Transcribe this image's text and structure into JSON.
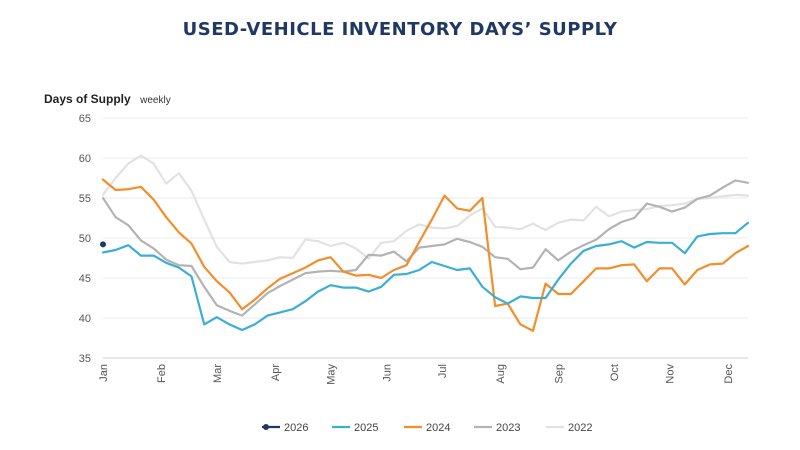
{
  "chart_data": {
    "type": "line",
    "title": "USED-VEHICLE INVENTORY DAYS’ SUPPLY",
    "ylabel": "Days of Supply",
    "ylabel_note": "weekly",
    "xlabel": "",
    "ylim": [
      35,
      65
    ],
    "yticks": [
      35,
      40,
      45,
      50,
      55,
      60,
      65
    ],
    "xlim": [
      1,
      52
    ],
    "months": [
      {
        "label": "Jan",
        "week": 1
      },
      {
        "label": "Feb",
        "week": 5.6
      },
      {
        "label": "Mar",
        "week": 10
      },
      {
        "label": "Apr",
        "week": 14.6
      },
      {
        "label": "May",
        "week": 19
      },
      {
        "label": "Jun",
        "week": 23.4
      },
      {
        "label": "Jul",
        "week": 27.8
      },
      {
        "label": "Aug",
        "week": 32.4
      },
      {
        "label": "Sep",
        "week": 37
      },
      {
        "label": "Oct",
        "week": 41.4
      },
      {
        "label": "Nov",
        "week": 45.8
      },
      {
        "label": "Dec",
        "week": 50.4
      }
    ],
    "grid": "horizontal",
    "legend": "bottom",
    "series": [
      {
        "name": "2026",
        "color": "#1f3864",
        "style": "marker",
        "x": [
          1
        ],
        "values": [
          49.2
        ]
      },
      {
        "name": "2025",
        "color": "#3aaed3",
        "x": [
          1,
          2,
          3,
          4,
          5,
          6,
          7,
          8,
          9,
          10,
          11,
          12,
          13,
          14,
          15,
          16,
          17,
          18,
          19,
          20,
          21,
          22,
          23,
          24,
          25,
          26,
          27,
          28,
          29,
          30,
          31,
          32,
          33,
          34,
          35,
          36,
          37,
          38,
          39,
          40,
          41,
          42,
          43,
          44,
          45,
          46,
          47,
          48,
          49,
          50,
          51,
          52
        ],
        "values": [
          48.2,
          48.5,
          49.1,
          47.8,
          47.8,
          46.9,
          46.3,
          45.2,
          39.2,
          40.1,
          39.2,
          38.5,
          39.2,
          40.3,
          40.7,
          41.1,
          42.1,
          43.3,
          44.1,
          43.8,
          43.8,
          43.3,
          43.9,
          45.4,
          45.5,
          46.0,
          47.0,
          46.5,
          46.0,
          46.2,
          43.9,
          42.6,
          41.8,
          42.7,
          42.5,
          42.5,
          44.8,
          46.8,
          48.4,
          49.0,
          49.2,
          49.6,
          48.8,
          49.5,
          49.4,
          49.4,
          48.1,
          50.2,
          50.5,
          50.6,
          50.6,
          51.9
        ]
      },
      {
        "name": "2024",
        "color": "#f28e2b",
        "x": [
          1,
          2,
          3,
          4,
          5,
          6,
          7,
          8,
          9,
          10,
          11,
          12,
          13,
          14,
          15,
          16,
          17,
          18,
          19,
          20,
          21,
          22,
          23,
          24,
          25,
          26,
          27,
          28,
          29,
          30,
          31,
          32,
          33,
          34,
          35,
          36,
          37,
          38,
          39,
          40,
          41,
          42,
          43,
          44,
          45,
          46,
          47,
          48,
          49,
          50,
          51,
          52
        ],
        "values": [
          57.3,
          56.0,
          56.1,
          56.4,
          54.8,
          52.6,
          50.7,
          49.3,
          46.4,
          44.6,
          43.2,
          41.1,
          42.3,
          43.7,
          44.9,
          45.6,
          46.3,
          47.2,
          47.6,
          45.8,
          45.3,
          45.4,
          45.0,
          46.0,
          46.6,
          49.5,
          52.3,
          55.3,
          53.7,
          53.4,
          55.0,
          41.5,
          41.8,
          39.2,
          38.4,
          44.3,
          43.0,
          43.0,
          44.6,
          46.2,
          46.2,
          46.6,
          46.7,
          44.6,
          46.2,
          46.2,
          44.2,
          46.0,
          46.7,
          46.8,
          48.1,
          49.0
        ]
      },
      {
        "name": "2023",
        "color": "#b3b3b3",
        "x": [
          1,
          2,
          3,
          4,
          5,
          6,
          7,
          8,
          9,
          10,
          11,
          12,
          13,
          14,
          15,
          16,
          17,
          18,
          19,
          20,
          21,
          22,
          23,
          24,
          25,
          26,
          27,
          28,
          29,
          30,
          31,
          32,
          33,
          34,
          35,
          36,
          37,
          38,
          39,
          40,
          41,
          42,
          43,
          44,
          45,
          46,
          47,
          48,
          49,
          50,
          51,
          52
        ],
        "values": [
          55.0,
          52.6,
          51.6,
          49.7,
          48.7,
          47.3,
          46.6,
          46.5,
          43.9,
          41.6,
          40.9,
          40.3,
          41.7,
          43.1,
          44.0,
          44.8,
          45.6,
          45.8,
          45.9,
          45.8,
          46.0,
          47.9,
          47.8,
          48.3,
          47.1,
          48.8,
          49.0,
          49.2,
          49.9,
          49.5,
          48.9,
          47.6,
          47.4,
          46.1,
          46.3,
          48.6,
          47.2,
          48.3,
          49.1,
          49.8,
          51.1,
          52.0,
          52.5,
          54.3,
          53.9,
          53.3,
          53.8,
          54.9,
          55.3,
          56.3,
          57.2,
          56.9
        ]
      },
      {
        "name": "2022",
        "color": "#e2e2e2",
        "x": [
          1,
          2,
          3,
          4,
          5,
          6,
          7,
          8,
          9,
          10,
          11,
          12,
          13,
          14,
          15,
          16,
          17,
          18,
          19,
          20,
          21,
          22,
          23,
          24,
          25,
          26,
          27,
          28,
          29,
          30,
          31,
          32,
          33,
          34,
          35,
          36,
          37,
          38,
          39,
          40,
          41,
          42,
          43,
          44,
          45,
          46,
          47,
          48,
          49,
          50,
          51,
          52
        ],
        "values": [
          55.4,
          57.5,
          59.3,
          60.3,
          59.3,
          56.8,
          58.1,
          55.9,
          52.3,
          48.9,
          47.0,
          46.8,
          47.0,
          47.2,
          47.6,
          47.5,
          49.8,
          49.6,
          49.0,
          49.4,
          48.7,
          47.4,
          49.4,
          49.6,
          50.9,
          51.7,
          51.3,
          51.2,
          51.5,
          52.8,
          53.7,
          51.4,
          51.3,
          51.1,
          51.8,
          51.0,
          51.9,
          52.3,
          52.2,
          53.9,
          52.7,
          53.3,
          53.5,
          53.6,
          54.0,
          54.1,
          54.3,
          54.9,
          55.0,
          55.2,
          55.4,
          55.3
        ]
      }
    ]
  }
}
